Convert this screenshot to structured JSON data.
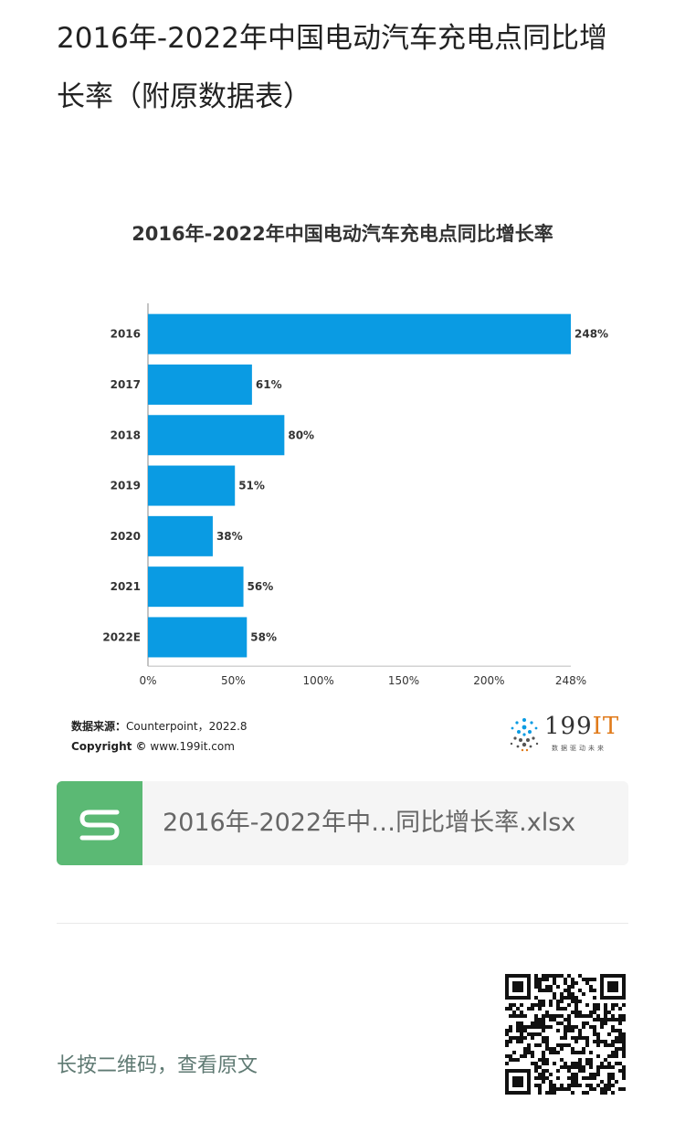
{
  "page": {
    "title": "2016年-2022年中国电动汽车充电点同比增长率（附原数据表）"
  },
  "chart_data": {
    "type": "bar",
    "orientation": "horizontal",
    "title": "2016年-2022年中国电动汽车充电点同比增长率",
    "categories": [
      "2016",
      "2017",
      "2018",
      "2019",
      "2020",
      "2021",
      "2022E"
    ],
    "values": [
      248,
      61,
      80,
      51,
      38,
      56,
      58
    ],
    "value_labels": [
      "248%",
      "61%",
      "80%",
      "51%",
      "38%",
      "56%",
      "58%"
    ],
    "xlim": [
      0,
      248
    ],
    "x_ticks": [
      0,
      50,
      100,
      150,
      200,
      248
    ],
    "x_tick_labels": [
      "0%",
      "50%",
      "100%",
      "150%",
      "200%",
      "248%"
    ],
    "bar_color": "#0a9be3",
    "grid": false,
    "source_label": "数据来源：",
    "source_text": "Counterpoint，2022.8",
    "copyright_label": "Copyright ©",
    "copyright_text": "www.199it.com"
  },
  "logo": {
    "main": "199",
    "accent": "IT",
    "tagline": "数据驱动未来"
  },
  "attachment": {
    "icon": "spreadsheet-icon",
    "filename": "2016年-2022年中…同比增长率.xlsx",
    "icon_color": "#5bb974"
  },
  "footer": {
    "hint": "长按二维码，查看原文",
    "qr_icon": "qr-code-icon"
  }
}
